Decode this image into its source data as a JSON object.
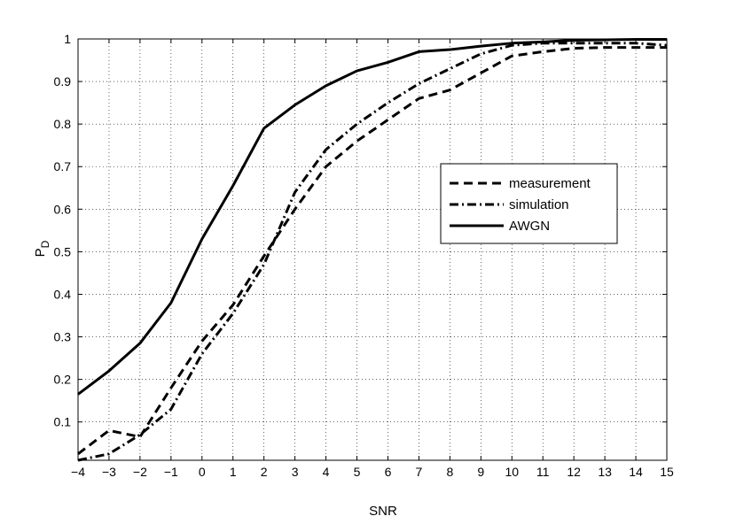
{
  "chart_data": {
    "type": "line",
    "title": "",
    "xlabel": "SNR",
    "ylabel": "P",
    "ylabel_subscript": "D",
    "xlim": [
      -4,
      15
    ],
    "ylim": [
      0.01,
      1
    ],
    "xticks": [
      -4,
      -3,
      -2,
      -1,
      0,
      1,
      2,
      3,
      4,
      5,
      6,
      7,
      8,
      9,
      10,
      11,
      12,
      13,
      14,
      15
    ],
    "xtick_labels": [
      "−4",
      "−3",
      "−2",
      "−1",
      "0",
      "1",
      "2",
      "3",
      "4",
      "5",
      "6",
      "7",
      "8",
      "9",
      "10",
      "11",
      "12",
      "13",
      "14",
      "15"
    ],
    "yticks": [
      0.1,
      0.2,
      0.3,
      0.4,
      0.5,
      0.6,
      0.7,
      0.8,
      0.9,
      1
    ],
    "ytick_labels": [
      "0.1",
      "0.2",
      "0.3",
      "0.4",
      "0.5",
      "0.6",
      "0.7",
      "0.8",
      "0.9",
      "1"
    ],
    "grid": true,
    "legend_position": "right",
    "x": [
      -4,
      -3,
      -2,
      -1,
      0,
      1,
      2,
      3,
      4,
      5,
      6,
      7,
      8,
      9,
      10,
      11,
      12,
      13,
      14,
      15
    ],
    "series": [
      {
        "name": "measurement",
        "style": "dashed",
        "values": [
          0.025,
          0.08,
          0.065,
          0.18,
          0.29,
          0.375,
          0.49,
          0.6,
          0.7,
          0.76,
          0.81,
          0.86,
          0.88,
          0.92,
          0.96,
          0.97,
          0.978,
          0.98,
          0.98,
          0.98
        ]
      },
      {
        "name": "simulation",
        "style": "dashdot",
        "values": [
          0.01,
          0.025,
          0.07,
          0.13,
          0.26,
          0.355,
          0.47,
          0.64,
          0.74,
          0.8,
          0.85,
          0.895,
          0.93,
          0.965,
          0.985,
          0.99,
          0.99,
          0.99,
          0.99,
          0.985
        ]
      },
      {
        "name": "AWGN",
        "style": "solid",
        "values": [
          0.165,
          0.22,
          0.285,
          0.38,
          0.53,
          0.655,
          0.79,
          0.845,
          0.89,
          0.925,
          0.945,
          0.97,
          0.975,
          0.983,
          0.99,
          0.993,
          0.997,
          0.998,
          0.999,
          0.999
        ]
      }
    ]
  }
}
